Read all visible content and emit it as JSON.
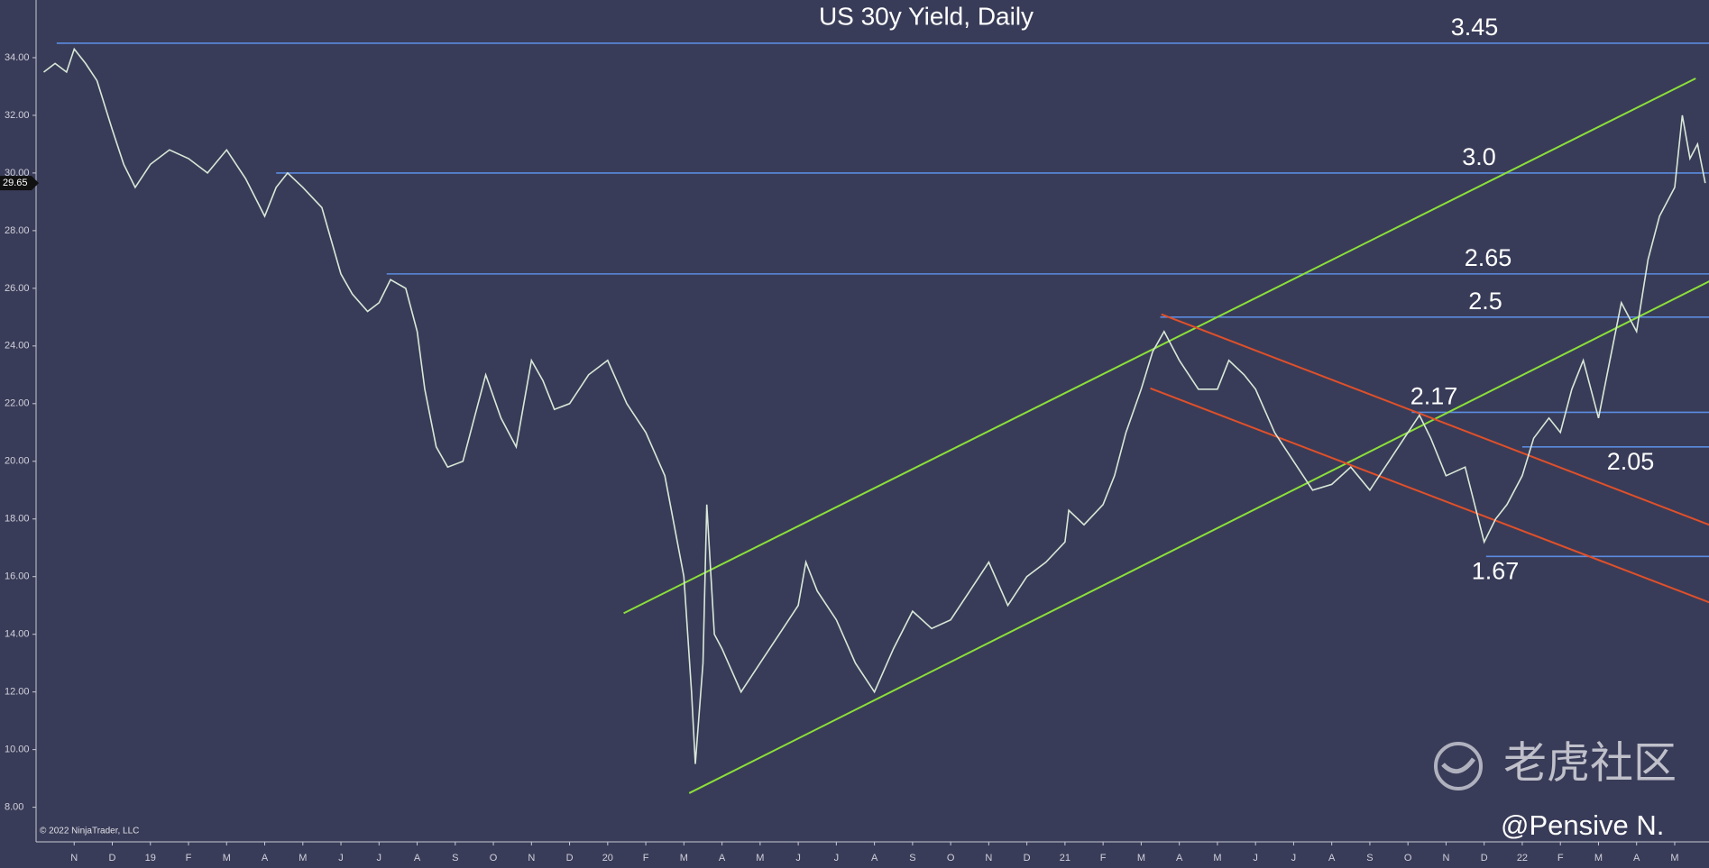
{
  "chart_data": {
    "type": "line",
    "title": "US 30y Yield, Daily",
    "copyright": "© 2022 NinjaTrader, LLC",
    "watermark": "老虎社区",
    "author": "@Pensive N.",
    "xlim": [
      -1,
      42.9
    ],
    "ylim": [
      6.8,
      36.0
    ],
    "xticks": [
      {
        "value": 0,
        "label": "N"
      },
      {
        "value": 1,
        "label": "D"
      },
      {
        "value": 2,
        "label": "19"
      },
      {
        "value": 3,
        "label": "F"
      },
      {
        "value": 4,
        "label": "M"
      },
      {
        "value": 5,
        "label": "A"
      },
      {
        "value": 6,
        "label": "M"
      },
      {
        "value": 7,
        "label": "J"
      },
      {
        "value": 8,
        "label": "J"
      },
      {
        "value": 9,
        "label": "A"
      },
      {
        "value": 10,
        "label": "S"
      },
      {
        "value": 11,
        "label": "O"
      },
      {
        "value": 12,
        "label": "N"
      },
      {
        "value": 13,
        "label": "D"
      },
      {
        "value": 14,
        "label": "20"
      },
      {
        "value": 15,
        "label": "F"
      },
      {
        "value": 16,
        "label": "M"
      },
      {
        "value": 17,
        "label": "A"
      },
      {
        "value": 18,
        "label": "M"
      },
      {
        "value": 19,
        "label": "J"
      },
      {
        "value": 20,
        "label": "J"
      },
      {
        "value": 21,
        "label": "A"
      },
      {
        "value": 22,
        "label": "S"
      },
      {
        "value": 23,
        "label": "O"
      },
      {
        "value": 24,
        "label": "N"
      },
      {
        "value": 25,
        "label": "D"
      },
      {
        "value": 26,
        "label": "21"
      },
      {
        "value": 27,
        "label": "F"
      },
      {
        "value": 28,
        "label": "M"
      },
      {
        "value": 29,
        "label": "A"
      },
      {
        "value": 30,
        "label": "M"
      },
      {
        "value": 31,
        "label": "J"
      },
      {
        "value": 32,
        "label": "J"
      },
      {
        "value": 33,
        "label": "A"
      },
      {
        "value": 34,
        "label": "S"
      },
      {
        "value": 35,
        "label": "O"
      },
      {
        "value": 36,
        "label": "N"
      },
      {
        "value": 37,
        "label": "D"
      },
      {
        "value": 38,
        "label": "22"
      },
      {
        "value": 39,
        "label": "F"
      },
      {
        "value": 40,
        "label": "M"
      },
      {
        "value": 41,
        "label": "A"
      },
      {
        "value": 42,
        "label": "M"
      }
    ],
    "yticks": [
      {
        "value": 8,
        "label": "8.00"
      },
      {
        "value": 10,
        "label": "10.00"
      },
      {
        "value": 12,
        "label": "12.00"
      },
      {
        "value": 14,
        "label": "14.00"
      },
      {
        "value": 16,
        "label": "16.00"
      },
      {
        "value": 18,
        "label": "18.00"
      },
      {
        "value": 20,
        "label": "20.00"
      },
      {
        "value": 22,
        "label": "22.00"
      },
      {
        "value": 24,
        "label": "24.00"
      },
      {
        "value": 26,
        "label": "26.00"
      },
      {
        "value": 28,
        "label": "28.00"
      },
      {
        "value": 30,
        "label": "30.00"
      },
      {
        "value": 32,
        "label": "32.00"
      },
      {
        "value": 34,
        "label": "34.00"
      }
    ],
    "last_price": 29.65,
    "series": [
      {
        "color": "#d8e8d8",
        "x": [
          -0.8,
          -0.5,
          -0.2,
          0,
          0.3,
          0.6,
          1,
          1.3,
          1.6,
          2,
          2.5,
          3,
          3.5,
          4,
          4.5,
          5,
          5.3,
          5.6,
          6,
          6.5,
          7,
          7.3,
          7.7,
          8,
          8.3,
          8.7,
          9,
          9.2,
          9.5,
          9.8,
          10.2,
          10.5,
          10.8,
          11.2,
          11.6,
          12,
          12.3,
          12.6,
          13,
          13.5,
          14,
          14.5,
          15,
          15.5,
          16,
          16.2,
          16.3,
          16.5,
          16.6,
          16.8,
          17,
          17.5,
          18,
          18.5,
          19,
          19.2,
          19.5,
          20,
          20.5,
          21,
          21.5,
          22,
          22.5,
          23,
          23.5,
          24,
          24.5,
          25,
          25.5,
          26,
          26.1,
          26.5,
          27,
          27.3,
          27.6,
          28,
          28.3,
          28.6,
          29,
          29.5,
          30,
          30.3,
          30.7,
          31,
          31.5,
          32,
          32.5,
          33,
          33.5,
          34,
          34.5,
          35,
          35.3,
          35.6,
          36,
          36.5,
          37,
          37.3,
          37.6,
          38,
          38.3,
          38.7,
          39,
          39.3,
          39.6,
          40,
          40.3,
          40.6,
          41,
          41.3,
          41.6,
          42,
          42.2,
          42.4,
          42.6,
          42.8
        ],
        "values": [
          33.5,
          33.8,
          33.5,
          34.3,
          33.8,
          33.2,
          31.5,
          30.3,
          29.5,
          30.3,
          30.8,
          30.5,
          30.0,
          30.8,
          29.8,
          28.5,
          29.5,
          30.0,
          29.5,
          28.8,
          26.5,
          25.8,
          25.2,
          25.5,
          26.3,
          26.0,
          24.5,
          22.5,
          20.5,
          19.8,
          20.0,
          21.5,
          23.0,
          21.5,
          20.5,
          23.5,
          22.8,
          21.8,
          22.0,
          23.0,
          23.5,
          22.0,
          21.0,
          19.5,
          16.0,
          12.0,
          9.5,
          13.0,
          18.5,
          14.0,
          13.5,
          12.0,
          13.0,
          14.0,
          15.0,
          16.5,
          15.5,
          14.5,
          13.0,
          12.0,
          13.5,
          14.8,
          14.2,
          14.5,
          15.5,
          16.5,
          15.0,
          16.0,
          16.5,
          17.2,
          18.3,
          17.8,
          18.5,
          19.5,
          21.0,
          22.5,
          23.8,
          24.5,
          23.5,
          22.5,
          22.5,
          23.5,
          23.0,
          22.5,
          21.0,
          20.0,
          19.0,
          19.2,
          19.8,
          19.0,
          20.0,
          21.0,
          21.6,
          20.8,
          19.5,
          19.8,
          17.2,
          18.0,
          18.5,
          19.5,
          20.8,
          21.5,
          21.0,
          22.5,
          23.5,
          21.5,
          23.5,
          25.5,
          24.5,
          27.0,
          28.5,
          29.5,
          32.0,
          30.5,
          31.0,
          29.65
        ]
      }
    ],
    "levels": {
      "color": "#5b8be0",
      "items": [
        {
          "value": 34.5,
          "label": "3.45",
          "start": -0.46,
          "side": "above"
        },
        {
          "value": 30.0,
          "label": "3.0",
          "start": 5.3,
          "side": "above"
        },
        {
          "value": 26.5,
          "label": "2.65",
          "start": 8.2,
          "side": "above"
        },
        {
          "value": 25.0,
          "label": "2.5",
          "start": 28.5,
          "side": "above"
        },
        {
          "value": 21.7,
          "label": "2.17",
          "start": 35.1,
          "side": "above"
        },
        {
          "value": 20.5,
          "label": "2.05",
          "start": 38.0,
          "side": "below"
        },
        {
          "value": 16.7,
          "label": "1.67",
          "start": 37.05,
          "side": "below"
        }
      ]
    },
    "trendlines": [
      {
        "color": "#8be03a",
        "x": [
          14.42,
          42.55
        ],
        "values": [
          14.73,
          33.28
        ]
      },
      {
        "color": "#8be03a",
        "x": [
          16.14,
          42.92
        ],
        "values": [
          8.49,
          26.25
        ]
      },
      {
        "color": "#e0502a",
        "x": [
          28.53,
          42.92
        ],
        "values": [
          25.1,
          17.79
        ]
      },
      {
        "color": "#e0502a",
        "x": [
          28.24,
          42.92
        ],
        "values": [
          22.53,
          15.1
        ]
      }
    ]
  }
}
